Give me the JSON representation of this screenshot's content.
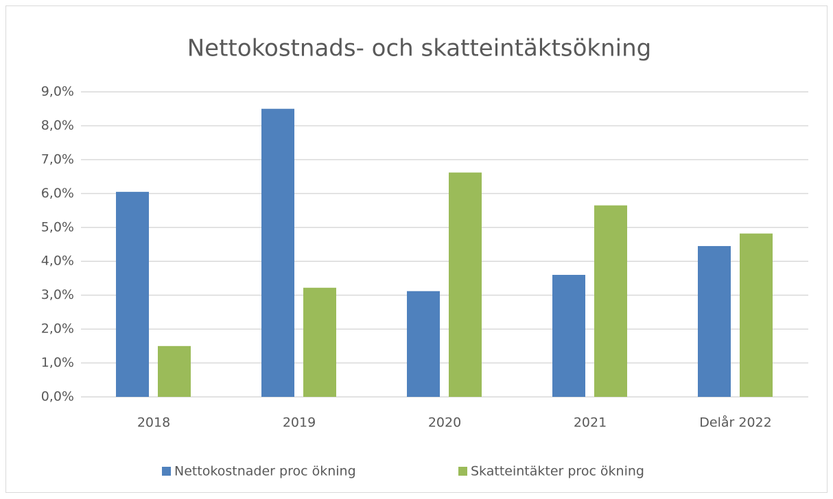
{
  "chart_data": {
    "type": "bar",
    "title": "Nettokostnads- och skatteintäktsökning",
    "categories": [
      "2018",
      "2019",
      "2020",
      "2021",
      "Delår 2022"
    ],
    "series": [
      {
        "name": "Nettokostnader proc ökning",
        "color": "#4f81bd",
        "values": [
          6.05,
          8.5,
          3.12,
          3.6,
          4.45
        ]
      },
      {
        "name": "Skatteintäkter proc ökning",
        "color": "#9bbb59",
        "values": [
          1.5,
          3.22,
          6.62,
          5.65,
          4.82
        ]
      }
    ],
    "ylim": [
      0,
      9
    ],
    "yticks": [
      {
        "value": 0,
        "label": "0,0%"
      },
      {
        "value": 1,
        "label": "1,0%"
      },
      {
        "value": 2,
        "label": "2,0%"
      },
      {
        "value": 3,
        "label": "3,0%"
      },
      {
        "value": 4,
        "label": "4,0%"
      },
      {
        "value": 5,
        "label": "5,0%"
      },
      {
        "value": 6,
        "label": "6,0%"
      },
      {
        "value": 7,
        "label": "7,0%"
      },
      {
        "value": 8,
        "label": "8,0%"
      },
      {
        "value": 9,
        "label": "9,0%"
      }
    ],
    "grid": true,
    "legend": "bottom"
  }
}
